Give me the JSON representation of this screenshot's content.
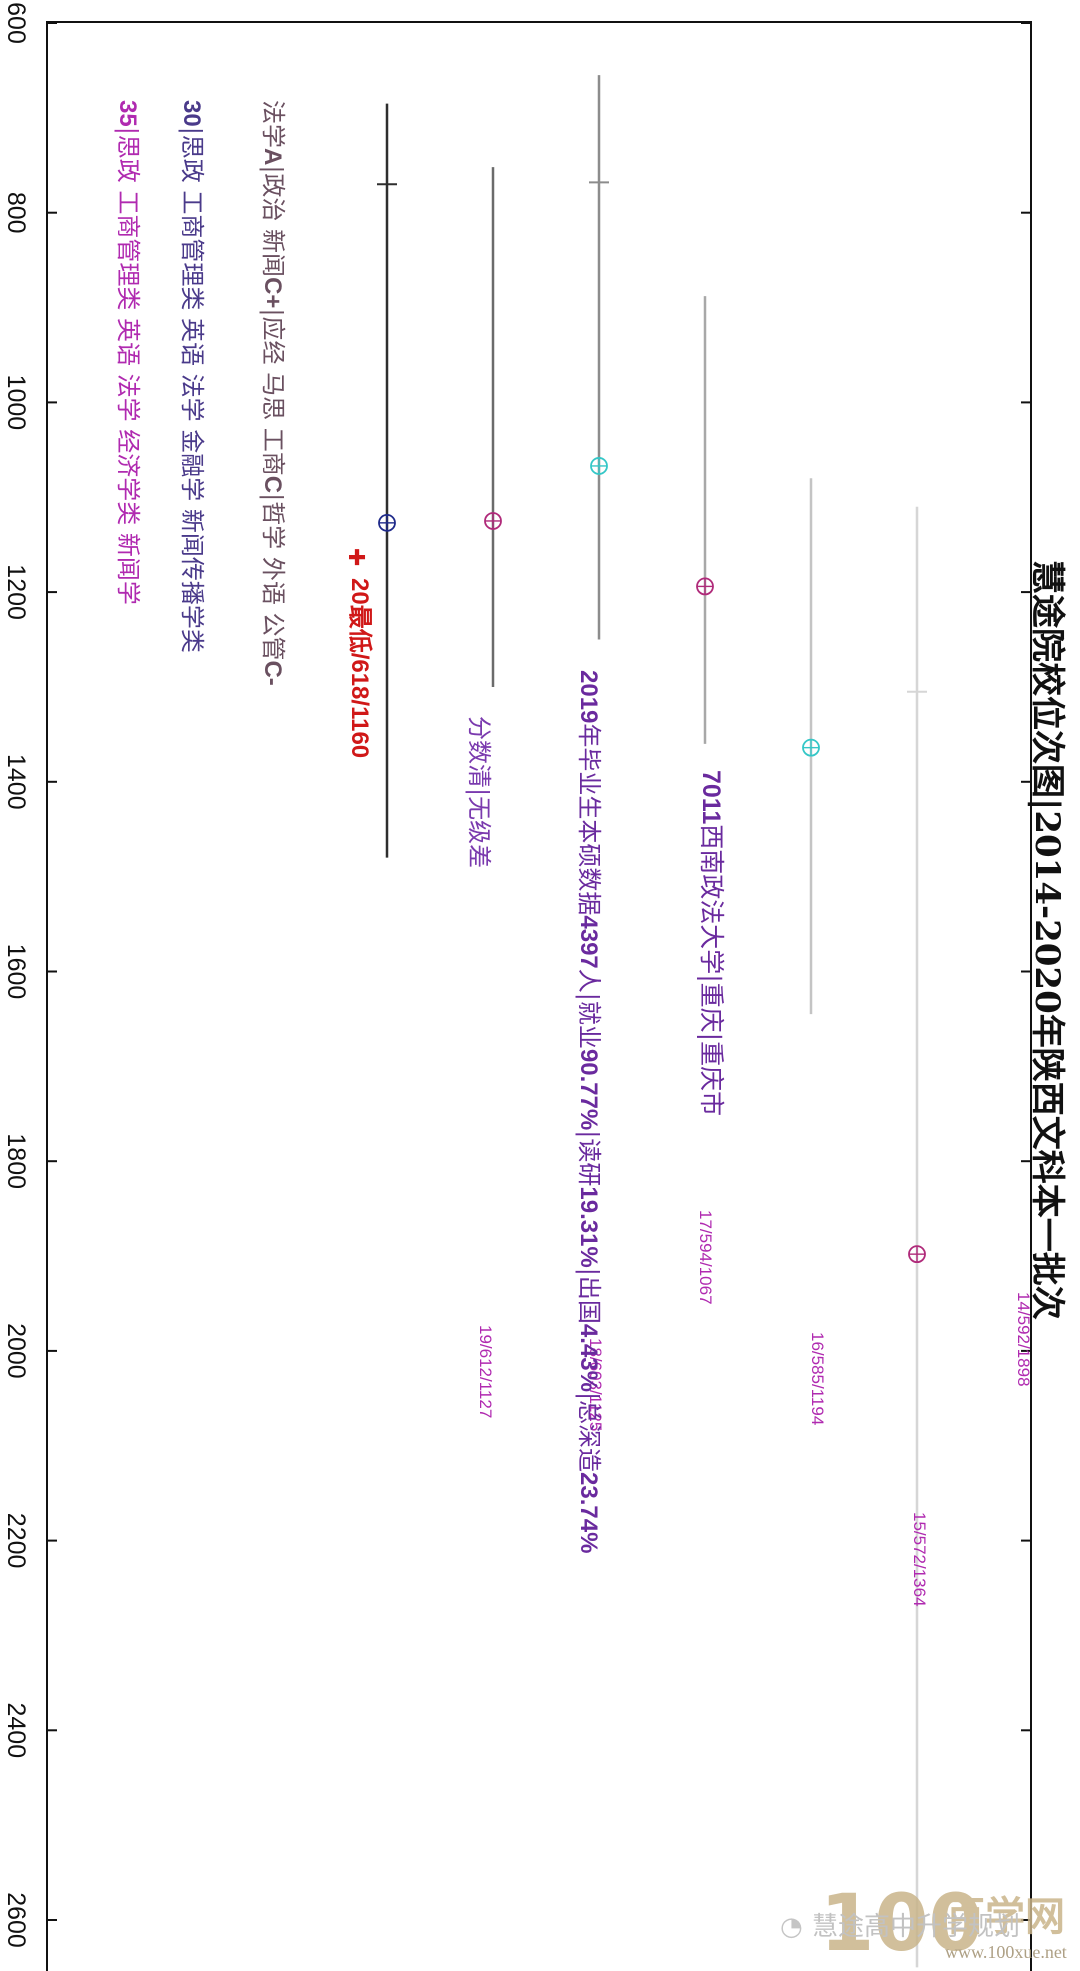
{
  "title": "慧途院校位次图|2014-2020年陕西文科本一批次",
  "chart_data": {
    "type": "line",
    "title": "慧途院校位次图|2014-2020年陕西文科本一批次",
    "axis": {
      "min": 600,
      "max": 2650,
      "ticks": [
        600,
        800,
        1000,
        1200,
        1400,
        1600,
        1800,
        2000,
        2200,
        2400,
        2600
      ]
    },
    "series": [
      {
        "label": "14/592/1898",
        "year": 14,
        "score": 592,
        "rank": 1898,
        "low": 1110,
        "high": 2650,
        "mid": 1305,
        "color": "#d6d6d6",
        "marker": "#b02a7a"
      },
      {
        "label": "15/572/1364",
        "year": 15,
        "score": 572,
        "rank": 1364,
        "low": 1080,
        "high": 1645,
        "color": "#c4c4c4",
        "marker": "#35c7c7"
      },
      {
        "label": "16/585/1194",
        "year": 16,
        "score": 585,
        "rank": 1194,
        "low": 888,
        "high": 1360,
        "color": "#a8a8a8",
        "marker": "#b02a7a"
      },
      {
        "label": "17/594/1067",
        "year": 17,
        "score": 594,
        "rank": 1067,
        "low": 655,
        "high": 1250,
        "mid": 768,
        "color": "#8c8c8c",
        "marker": "#35c7c7"
      },
      {
        "label": "18/603/1125",
        "year": 18,
        "score": 603,
        "rank": 1125,
        "low": 752,
        "high": 1300,
        "color": "#6b6b6b",
        "marker": "#b02a7a"
      },
      {
        "label": "19/612/1127",
        "year": 19,
        "score": 612,
        "rank": 1127,
        "low": 685,
        "high": 1480,
        "mid": 770,
        "color": "#2e2e2e",
        "marker": "#1f2a8a"
      }
    ]
  },
  "annotations": {
    "school_num": "7011",
    "school_rest": "西南政法大学|重庆|重庆市",
    "stats_year": "2019",
    "stats_t1": "年毕业生本硕数据",
    "stats_n1": "4397",
    "stats_t2": "人|就业",
    "stats_n2": "90.77%",
    "stats_t3": "|读研",
    "stats_n3": "19.31%",
    "stats_t4": "|出国",
    "stats_n4": "4.43%",
    "stats_t5": "|总深造",
    "stats_n5": "23.74%",
    "note": "分数清|无级差",
    "score2020_icon": "✚",
    "score2020": "20最低/618/1160",
    "subjects_a_1": "法学",
    "subjects_a_2": "A",
    "subjects_a_3": "|政治 新闻",
    "subjects_a_4": "C+",
    "subjects_a_5": "|应经 马思 工商",
    "subjects_a_6": "C",
    "subjects_a_7": "|哲学 外语 公管",
    "subjects_a_8": "C-",
    "majors30_num": "30",
    "majors30_rest": "|思政 工商管理类 英语 法学 金融学 新闻传播学类",
    "majors35_num": "35",
    "majors35_rest": "|思政 工商管理类 英语 法学 经济学类 新闻学"
  },
  "watermark": {
    "logo_num": "100",
    "logo_text": "百学网",
    "site": "www.100xue.net",
    "account": "慧途高中升学规划"
  }
}
